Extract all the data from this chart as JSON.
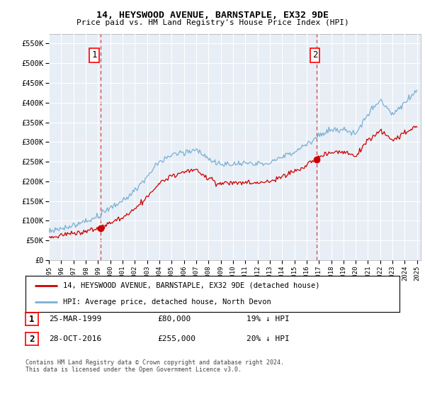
{
  "title": "14, HEYSWOOD AVENUE, BARNSTAPLE, EX32 9DE",
  "subtitle": "Price paid vs. HM Land Registry's House Price Index (HPI)",
  "ylabel_ticks": [
    "£0",
    "£50K",
    "£100K",
    "£150K",
    "£200K",
    "£250K",
    "£300K",
    "£350K",
    "£400K",
    "£450K",
    "£500K",
    "£550K"
  ],
  "ytick_values": [
    0,
    50000,
    100000,
    150000,
    200000,
    250000,
    300000,
    350000,
    400000,
    450000,
    500000,
    550000
  ],
  "ylim": [
    0,
    575000
  ],
  "x_start_year": 1995,
  "x_end_year": 2025,
  "xtick_years": [
    1995,
    1996,
    1997,
    1998,
    1999,
    2000,
    2001,
    2002,
    2003,
    2004,
    2005,
    2006,
    2007,
    2008,
    2009,
    2010,
    2011,
    2012,
    2013,
    2014,
    2015,
    2016,
    2017,
    2018,
    2019,
    2020,
    2021,
    2022,
    2023,
    2024,
    2025
  ],
  "legend_entry1": "14, HEYSWOOD AVENUE, BARNSTAPLE, EX32 9DE (detached house)",
  "legend_entry2": "HPI: Average price, detached house, North Devon",
  "marker1_x": 1999.23,
  "marker1_y": 80000,
  "marker1_text": "25-MAR-1999",
  "marker1_price": "£80,000",
  "marker1_hpi": "19% ↓ HPI",
  "marker2_x": 2016.83,
  "marker2_y": 255000,
  "marker2_text": "28-OCT-2016",
  "marker2_price": "£255,000",
  "marker2_hpi": "20% ↓ HPI",
  "line_color_property": "#cc0000",
  "line_color_hpi": "#7ab0d4",
  "dashed_line_color": "#cc3333",
  "background_color": "#ffffff",
  "plot_bg_color": "#e8eef5",
  "grid_color": "#ffffff",
  "footnote": "Contains HM Land Registry data © Crown copyright and database right 2024.\nThis data is licensed under the Open Government Licence v3.0."
}
